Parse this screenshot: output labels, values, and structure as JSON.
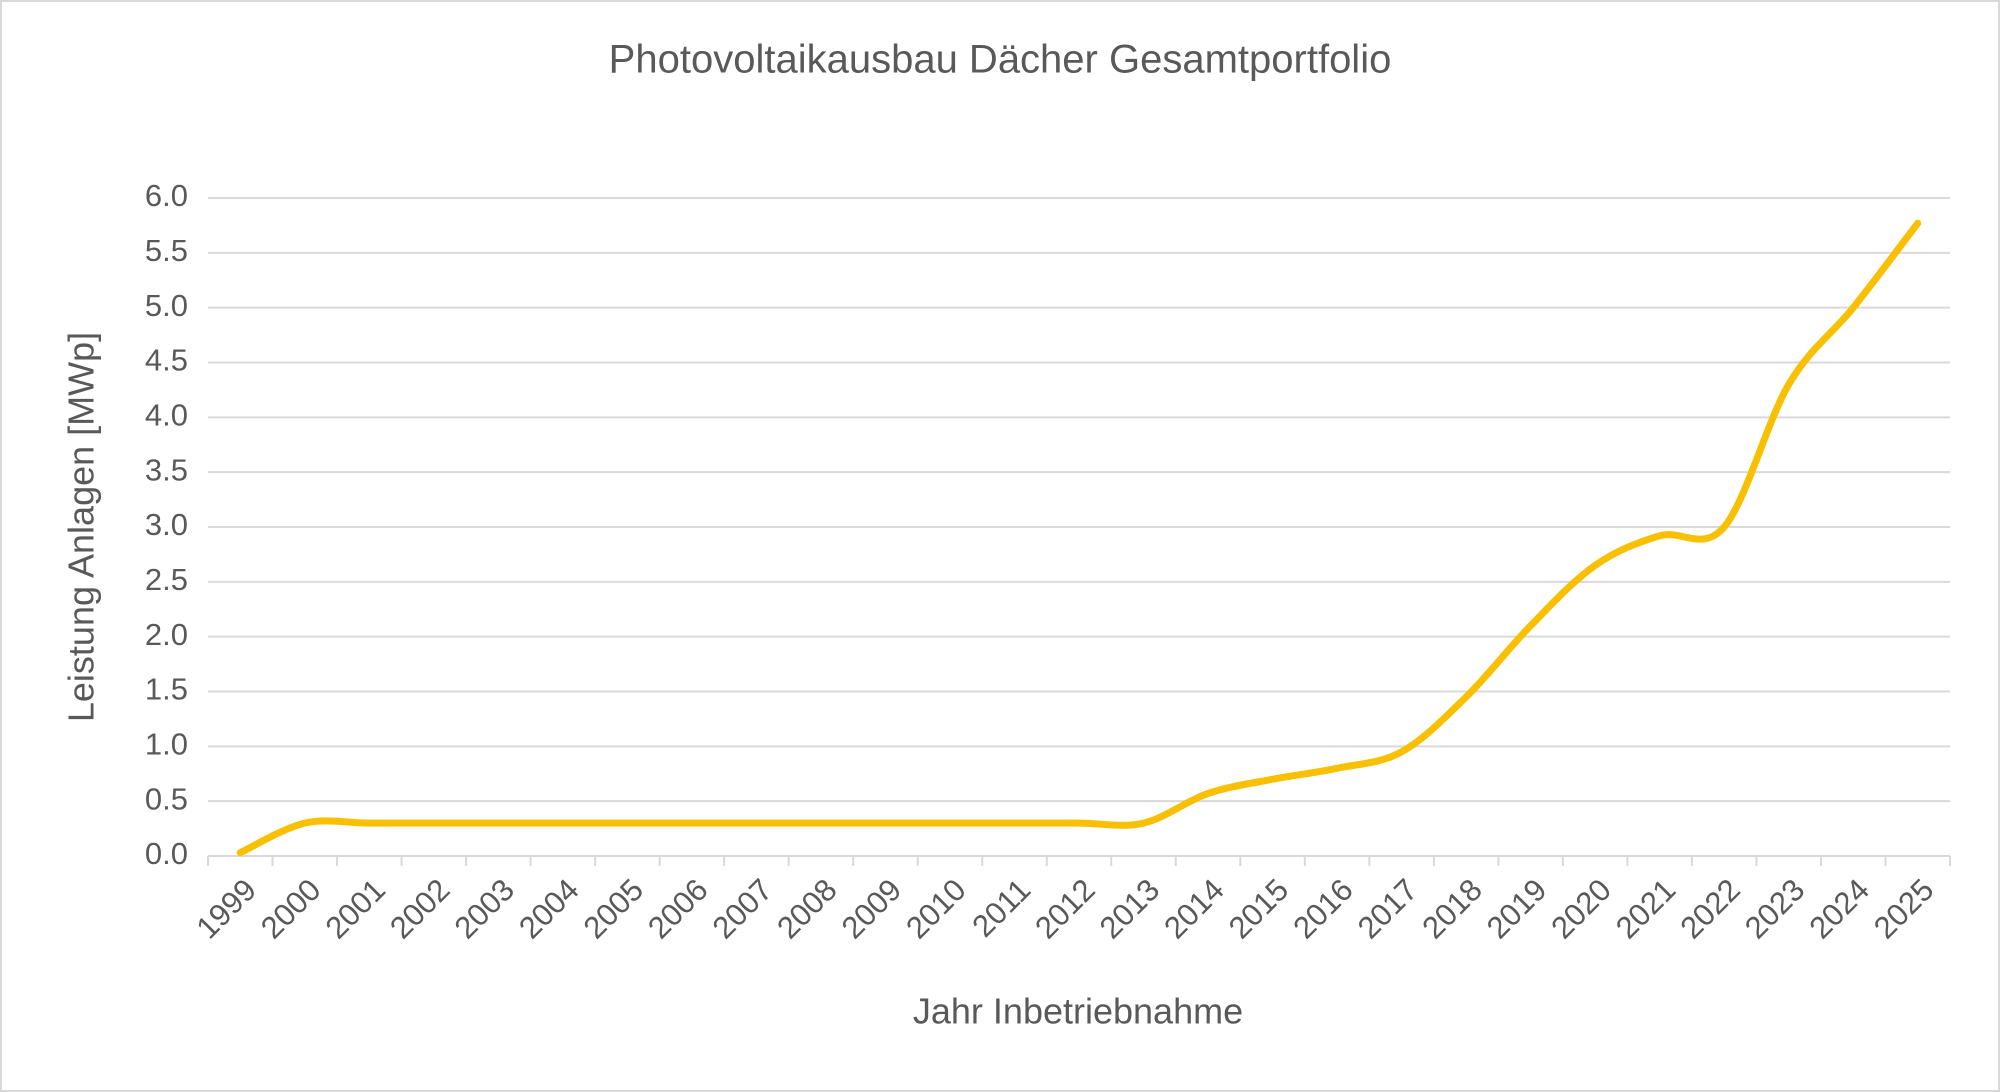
{
  "chart_data": {
    "type": "line",
    "title": "Photovoltaikausbau Dächer Gesamtportfolio",
    "x_label": "Jahr Inbetriebnahme",
    "y_label": "Leistung Anlagen [MWp]",
    "categories": [
      "1999",
      "2000",
      "2001",
      "2002",
      "2003",
      "2004",
      "2005",
      "2006",
      "2007",
      "2008",
      "2009",
      "2010",
      "2011",
      "2012",
      "2013",
      "2014",
      "2015",
      "2016",
      "2017",
      "2018",
      "2019",
      "2020",
      "2021",
      "2022",
      "2023",
      "2024",
      "2025"
    ],
    "series": [
      {
        "name": "Leistung Anlagen",
        "color": "#f8c000",
        "values": [
          0.03,
          0.3,
          0.3,
          0.3,
          0.3,
          0.3,
          0.3,
          0.3,
          0.3,
          0.3,
          0.3,
          0.3,
          0.3,
          0.3,
          0.3,
          0.57,
          0.7,
          0.8,
          0.95,
          1.45,
          2.1,
          2.65,
          2.92,
          3.0,
          4.3,
          5.0,
          5.77
        ]
      }
    ],
    "ylim": [
      0,
      6
    ],
    "yticks": [
      {
        "value": 0,
        "label": "0.0"
      },
      0.5,
      {
        "value": 1,
        "label": "1.0"
      },
      1.5,
      {
        "value": 2,
        "label": "2.0"
      },
      2.5,
      {
        "value": 3,
        "label": "3.0"
      },
      3.5,
      {
        "value": 4,
        "label": "4.0"
      },
      4.5,
      {
        "value": 5,
        "label": "5.0"
      },
      5.5,
      {
        "value": 6,
        "label": "6.0"
      }
    ],
    "grid": true,
    "smooth": true
  }
}
